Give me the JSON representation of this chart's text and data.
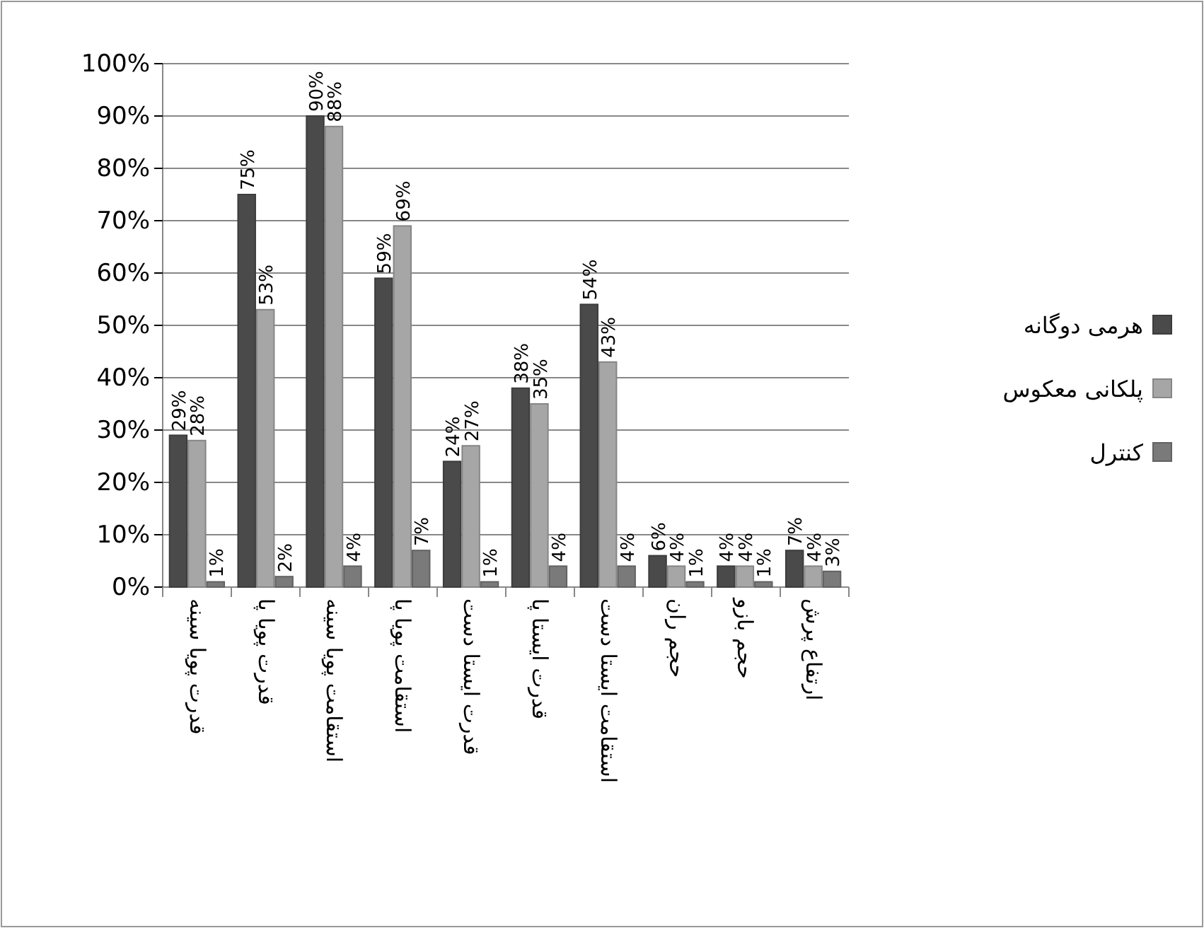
{
  "chart_data": {
    "type": "bar",
    "categories": [
      "قدرت پویا سینه",
      "قدرت پویا پا",
      "استقامت پویا سینه",
      "استقامت پویا پا",
      "قدرت ایستا دست",
      "قدرت ایستا پا",
      "استقامت ایستا دست",
      "حجم ران",
      "حجم بازو",
      "ارتفاع پرش"
    ],
    "series": [
      {
        "name": "هرمی دوگانه",
        "color": "#4a4a4a",
        "values": [
          29,
          75,
          90,
          59,
          24,
          38,
          54,
          6,
          4,
          7
        ],
        "value_labels": [
          "29%",
          "75%",
          "90%",
          "59%",
          "24%",
          "38%",
          "54%",
          "6%",
          "4%",
          "7%"
        ]
      },
      {
        "name": "پلکانی معکوس",
        "color": "#a6a6a6",
        "values": [
          28,
          53,
          88,
          69,
          27,
          35,
          43,
          4,
          4,
          4
        ],
        "value_labels": [
          "28%",
          "53%",
          "88%",
          "69%",
          "27%",
          "35%",
          "43%",
          "4%",
          "4%",
          "4%"
        ]
      },
      {
        "name": "کنترل",
        "color": "#7a7a7a",
        "values": [
          1,
          2,
          4,
          7,
          1,
          4,
          4,
          1,
          1,
          3
        ],
        "value_labels": [
          "1%",
          "2%",
          "4%",
          "7%",
          "1%",
          "4%",
          "4%",
          "1%",
          "1%",
          "3%"
        ]
      }
    ],
    "ylim": [
      0,
      100
    ],
    "yticks": [
      {
        "value": 0,
        "label": "0%"
      },
      {
        "value": 10,
        "label": "10%"
      },
      {
        "value": 20,
        "label": "20%"
      },
      {
        "value": 30,
        "label": "30%"
      },
      {
        "value": 40,
        "label": "40%"
      },
      {
        "value": 50,
        "label": "50%"
      },
      {
        "value": 60,
        "label": "60%"
      },
      {
        "value": 70,
        "label": "70%"
      },
      {
        "value": 80,
        "label": "80%"
      },
      {
        "value": 90,
        "label": "90%"
      },
      {
        "value": 100,
        "label": "100%"
      }
    ],
    "grid": "y",
    "legend": "right"
  }
}
